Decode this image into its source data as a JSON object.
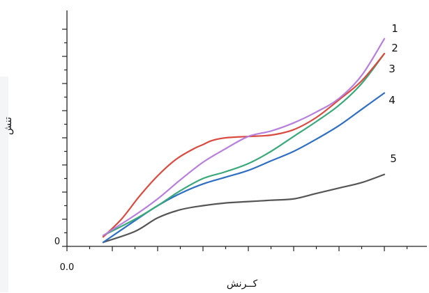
{
  "chart_data": {
    "type": "line",
    "title": "",
    "xlabel": "کــرنش",
    "ylabel": "تنش",
    "x_tick_labels": [
      "0.0"
    ],
    "y_tick_labels": [
      "0"
    ],
    "xlim": [
      0,
      7
    ],
    "ylim": [
      0,
      8
    ],
    "grid": false,
    "series": [
      {
        "name": "1",
        "color": "#b77fdd",
        "x": [
          0.8,
          1.5,
          2.0,
          2.5,
          3.0,
          3.5,
          4.0,
          4.5,
          5.0,
          5.5,
          6.0,
          6.5,
          7.0
        ],
        "y": [
          0.4,
          1.15,
          1.75,
          2.45,
          3.1,
          3.6,
          4.05,
          4.25,
          4.55,
          4.95,
          5.45,
          6.3,
          7.65
        ]
      },
      {
        "name": "2",
        "color": "#d94a3f",
        "x": [
          0.8,
          1.2,
          1.6,
          2.0,
          2.4,
          2.8,
          3.0,
          3.2,
          3.5,
          4.0,
          4.5,
          5.0,
          5.5,
          6.0,
          6.5,
          7.0
        ],
        "y": [
          0.35,
          1.0,
          1.85,
          2.6,
          3.2,
          3.6,
          3.75,
          3.9,
          4.0,
          4.05,
          4.1,
          4.3,
          4.75,
          5.4,
          6.1,
          7.1
        ]
      },
      {
        "name": "3",
        "color": "#3aa87a",
        "x": [
          0.8,
          1.5,
          2.0,
          2.5,
          3.0,
          3.5,
          4.0,
          4.5,
          5.0,
          5.5,
          6.0,
          6.5,
          7.0
        ],
        "y": [
          0.4,
          1.0,
          1.5,
          2.05,
          2.5,
          2.75,
          3.05,
          3.5,
          4.05,
          4.6,
          5.2,
          6.0,
          7.1
        ]
      },
      {
        "name": "4",
        "color": "#2f6fc3",
        "x": [
          0.8,
          1.5,
          2.0,
          2.5,
          3.0,
          3.5,
          4.0,
          4.5,
          5.0,
          5.5,
          6.0,
          6.5,
          7.0
        ],
        "y": [
          0.15,
          0.95,
          1.5,
          1.95,
          2.3,
          2.55,
          2.8,
          3.15,
          3.5,
          3.95,
          4.45,
          5.05,
          5.65
        ]
      },
      {
        "name": "5",
        "color": "#555555",
        "x": [
          0.8,
          1.5,
          2.0,
          2.5,
          3.0,
          3.5,
          4.0,
          4.5,
          5.0,
          5.5,
          6.0,
          6.5,
          7.0
        ],
        "y": [
          0.15,
          0.55,
          1.05,
          1.35,
          1.5,
          1.6,
          1.65,
          1.7,
          1.75,
          1.95,
          2.15,
          2.35,
          2.65
        ]
      }
    ]
  }
}
